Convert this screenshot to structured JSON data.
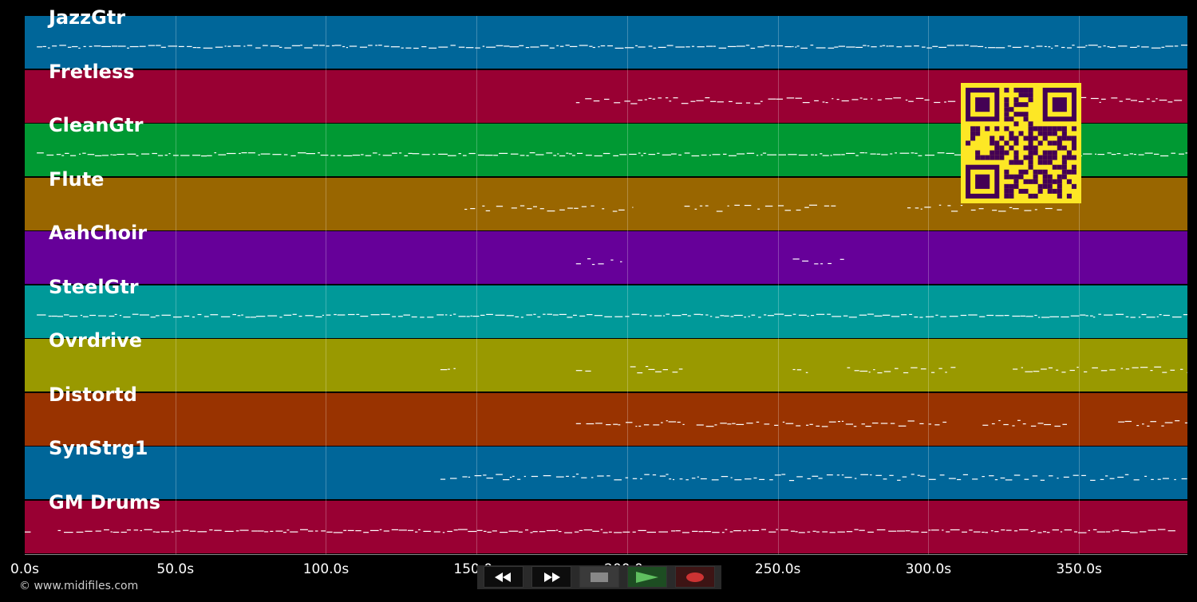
{
  "tracks": [
    {
      "name": "JazzGtr",
      "color": "#006699"
    },
    {
      "name": "Fretless",
      "color": "#990033"
    },
    {
      "name": "CleanGtr",
      "color": "#009933"
    },
    {
      "name": "Flute",
      "color": "#996600"
    },
    {
      "name": "AahChoir",
      "color": "#660099"
    },
    {
      "name": "SteelGtr",
      "color": "#009999"
    },
    {
      "name": "Ovrdrive",
      "color": "#999900"
    },
    {
      "name": "Distortd",
      "color": "#993300"
    },
    {
      "name": "SynStrg1",
      "color": "#006699"
    },
    {
      "name": "GM Drums",
      "color": "#990033"
    }
  ],
  "timeline": {
    "max_seconds": 386,
    "ticks": [
      "0.0s",
      "50.0s",
      "100.0s",
      "150.0s",
      "200.0s",
      "250.0s",
      "300.0s",
      "350.0s"
    ],
    "tick_values": [
      0,
      50,
      100,
      150,
      200,
      250,
      300,
      350
    ]
  },
  "notes_activity": [
    {
      "track": 0,
      "segments": [
        [
          4,
          386
        ]
      ],
      "density": "dense"
    },
    {
      "track": 1,
      "segments": [
        [
          183,
          386
        ]
      ],
      "density": "medium"
    },
    {
      "track": 2,
      "segments": [
        [
          4,
          386
        ]
      ],
      "density": "dense"
    },
    {
      "track": 3,
      "segments": [
        [
          146,
          202
        ],
        [
          219,
          271
        ],
        [
          293,
          345
        ]
      ],
      "density": "sparse"
    },
    {
      "track": 4,
      "segments": [
        [
          183,
          199
        ],
        [
          255,
          272
        ]
      ],
      "density": "sparse"
    },
    {
      "track": 5,
      "segments": [
        [
          4,
          386
        ]
      ],
      "density": "dense"
    },
    {
      "track": 6,
      "segments": [
        [
          138,
          143
        ],
        [
          183,
          188
        ],
        [
          201,
          219
        ],
        [
          255,
          260
        ],
        [
          273,
          309
        ],
        [
          328,
          386
        ]
      ],
      "density": "medium"
    },
    {
      "track": 7,
      "segments": [
        [
          183,
          219
        ],
        [
          223,
          306
        ],
        [
          318,
          346
        ],
        [
          363,
          386
        ]
      ],
      "density": "medium"
    },
    {
      "track": 8,
      "segments": [
        [
          138,
          386
        ]
      ],
      "density": "medium"
    },
    {
      "track": 9,
      "segments": [
        [
          0,
          2
        ],
        [
          11,
          382
        ]
      ],
      "density": "dense"
    }
  ],
  "copyright": "© www.midifiles.com",
  "transport": {
    "rewind_icon": "rewind-icon",
    "fast_forward_icon": "fast-forward-icon",
    "stop_icon": "stop-icon",
    "play_icon": "play-icon",
    "record_icon": "record-icon"
  },
  "qr_code": {
    "color": "#fde725",
    "module_color": "#440154"
  }
}
